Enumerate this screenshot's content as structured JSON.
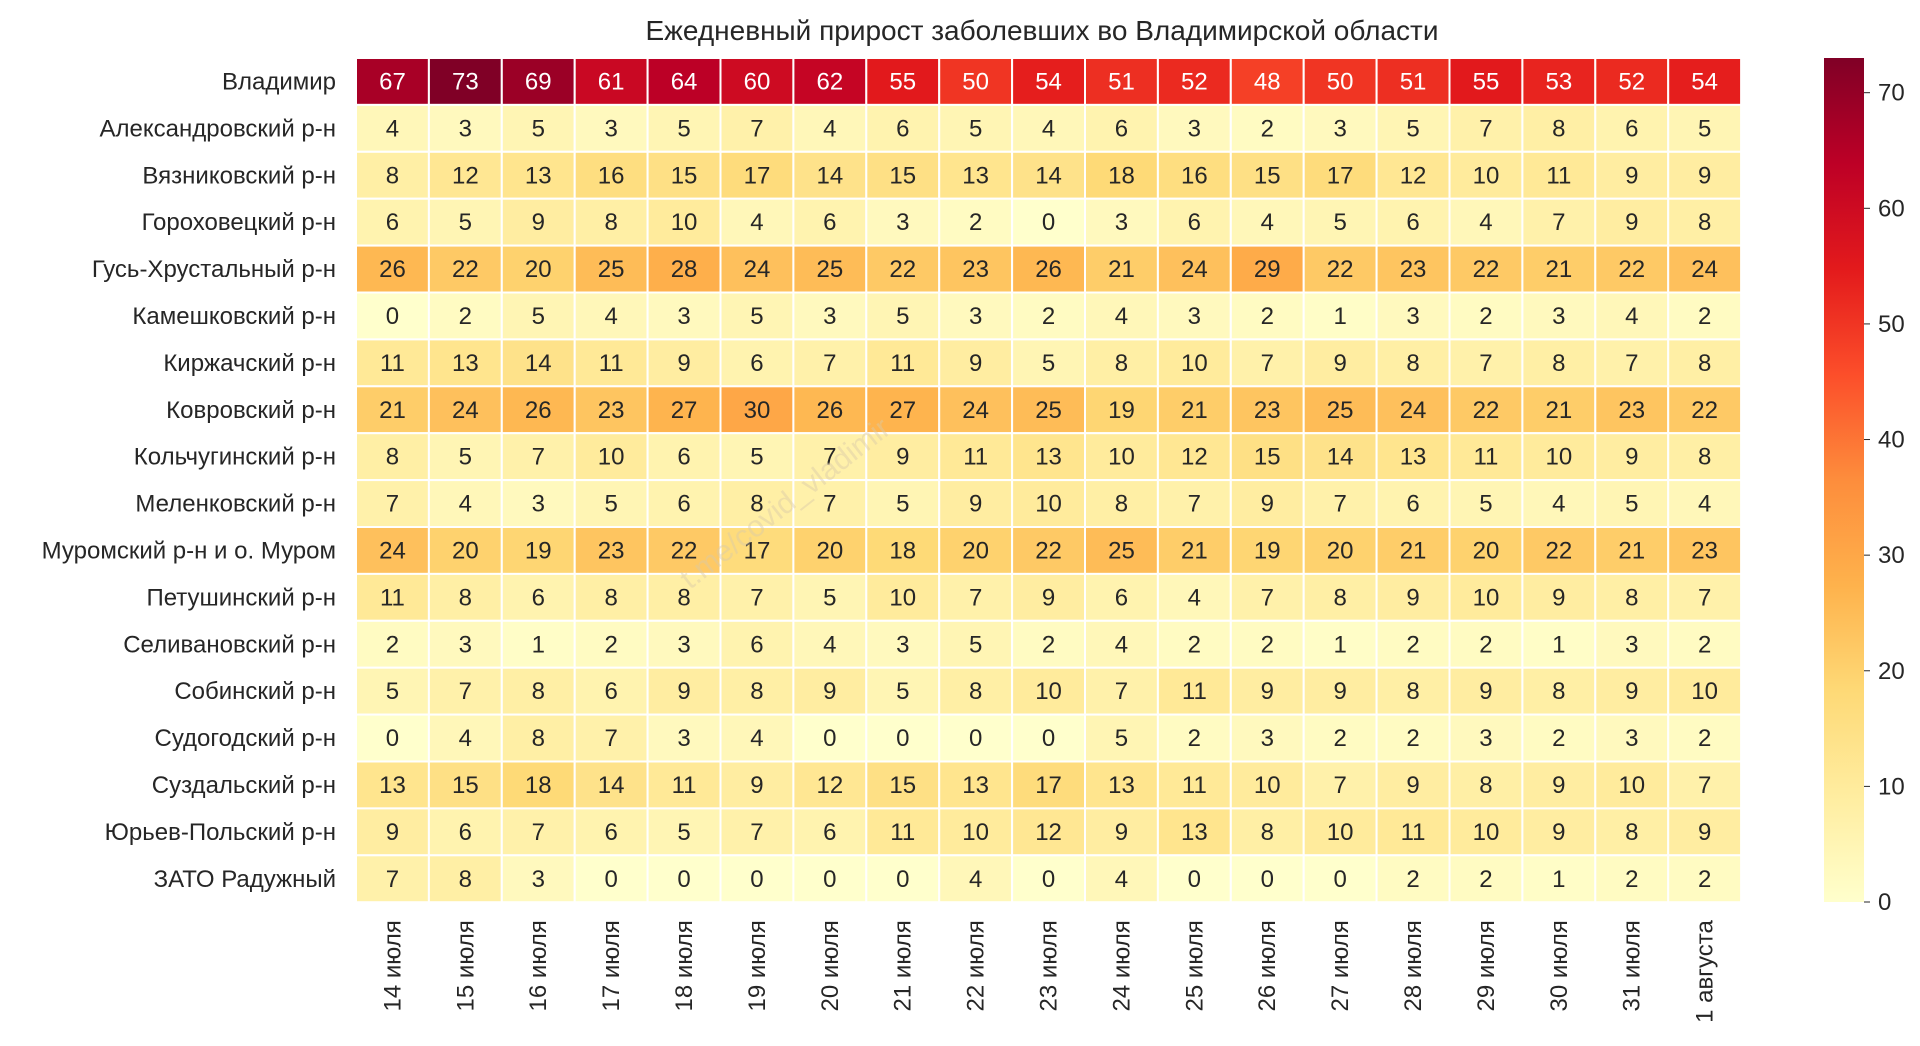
{
  "chart_data": {
    "type": "heatmap",
    "title": "Ежедневный прирост заболевших во Владимирской области",
    "rows": [
      "Владимир",
      "Александровский р-н",
      "Вязниковский р-н",
      "Гороховецкий р-н",
      "Гусь-Хрустальный р-н",
      "Камешковский р-н",
      "Киржачский р-н",
      "Ковровский р-н",
      "Кольчугинский р-н",
      "Меленковский р-н",
      "Муромский р-н и о. Муром",
      "Петушинский р-н",
      "Селивановский р-н",
      "Собинский р-н",
      "Судогодский р-н",
      "Суздальский р-н",
      "Юрьев-Польский р-н",
      "ЗАТО Радужный"
    ],
    "columns": [
      "14 июля",
      "15 июля",
      "16 июля",
      "17 июля",
      "18 июля",
      "19 июля",
      "20 июля",
      "21 июля",
      "22 июля",
      "23 июля",
      "24 июля",
      "25 июля",
      "26 июля",
      "27 июля",
      "28 июля",
      "29 июля",
      "30 июля",
      "31 июля",
      "1 августа"
    ],
    "values": [
      [
        67,
        73,
        69,
        61,
        64,
        60,
        62,
        55,
        50,
        54,
        51,
        52,
        48,
        50,
        51,
        55,
        53,
        52,
        54
      ],
      [
        4,
        3,
        5,
        3,
        5,
        7,
        4,
        6,
        5,
        4,
        6,
        3,
        2,
        3,
        5,
        7,
        8,
        6,
        5
      ],
      [
        8,
        12,
        13,
        16,
        15,
        17,
        14,
        15,
        13,
        14,
        18,
        16,
        15,
        17,
        12,
        10,
        11,
        9,
        9
      ],
      [
        6,
        5,
        9,
        8,
        10,
        4,
        6,
        3,
        2,
        0,
        3,
        6,
        4,
        5,
        6,
        4,
        7,
        9,
        8
      ],
      [
        26,
        22,
        20,
        25,
        28,
        24,
        25,
        22,
        23,
        26,
        21,
        24,
        29,
        22,
        23,
        22,
        21,
        22,
        24
      ],
      [
        0,
        2,
        5,
        4,
        3,
        5,
        3,
        5,
        3,
        2,
        4,
        3,
        2,
        1,
        3,
        2,
        3,
        4,
        2
      ],
      [
        11,
        13,
        14,
        11,
        9,
        6,
        7,
        11,
        9,
        5,
        8,
        10,
        7,
        9,
        8,
        7,
        8,
        7,
        8
      ],
      [
        21,
        24,
        26,
        23,
        27,
        30,
        26,
        27,
        24,
        25,
        19,
        21,
        23,
        25,
        24,
        22,
        21,
        23,
        22
      ],
      [
        8,
        5,
        7,
        10,
        6,
        5,
        7,
        9,
        11,
        13,
        10,
        12,
        15,
        14,
        13,
        11,
        10,
        9,
        8
      ],
      [
        7,
        4,
        3,
        5,
        6,
        8,
        7,
        5,
        9,
        10,
        8,
        7,
        9,
        7,
        6,
        5,
        4,
        5,
        4
      ],
      [
        24,
        20,
        19,
        23,
        22,
        17,
        20,
        18,
        20,
        22,
        25,
        21,
        19,
        20,
        21,
        20,
        22,
        21,
        23
      ],
      [
        11,
        8,
        6,
        8,
        8,
        7,
        5,
        10,
        7,
        9,
        6,
        4,
        7,
        8,
        9,
        10,
        9,
        8,
        7
      ],
      [
        2,
        3,
        1,
        2,
        3,
        6,
        4,
        3,
        5,
        2,
        4,
        2,
        2,
        1,
        2,
        2,
        1,
        3,
        2
      ],
      [
        5,
        7,
        8,
        6,
        9,
        8,
        9,
        5,
        8,
        10,
        7,
        11,
        9,
        9,
        8,
        9,
        8,
        9,
        10
      ],
      [
        0,
        4,
        8,
        7,
        3,
        4,
        0,
        0,
        0,
        0,
        5,
        2,
        3,
        2,
        2,
        3,
        2,
        3,
        2
      ],
      [
        13,
        15,
        18,
        14,
        11,
        9,
        12,
        15,
        13,
        17,
        13,
        11,
        10,
        7,
        9,
        8,
        9,
        10,
        7
      ],
      [
        9,
        6,
        7,
        6,
        5,
        7,
        6,
        11,
        10,
        12,
        9,
        13,
        8,
        10,
        11,
        10,
        9,
        8,
        9
      ],
      [
        7,
        8,
        3,
        0,
        0,
        0,
        0,
        0,
        4,
        0,
        4,
        0,
        0,
        0,
        2,
        2,
        1,
        2,
        2
      ]
    ],
    "colorbar": {
      "min": 0,
      "max": 73,
      "ticks": [
        0,
        10,
        20,
        30,
        40,
        50,
        60,
        70
      ]
    },
    "colorscale": [
      "#ffffcc",
      "#ffeda0",
      "#fed976",
      "#feb24c",
      "#fd8d3c",
      "#fc4e2a",
      "#e31a1c",
      "#bd0026",
      "#800026"
    ],
    "watermark": "t.me/covid_vladimir"
  }
}
